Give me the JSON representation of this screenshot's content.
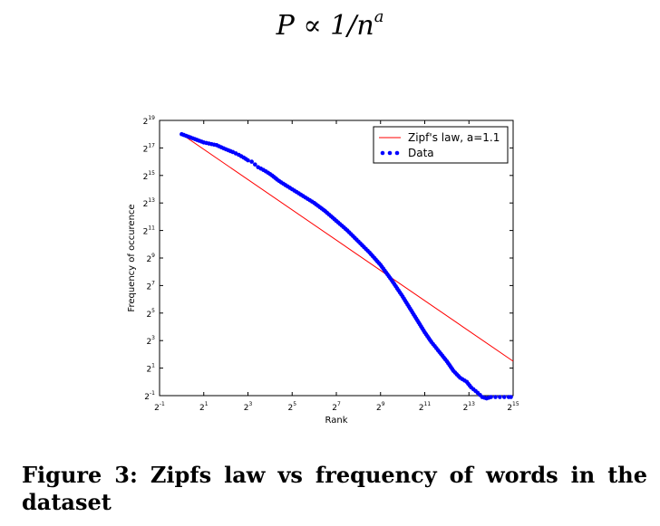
{
  "formula": {
    "lhs": "P",
    "op": "∝",
    "rhs": "1/n",
    "exponent": "a"
  },
  "caption": "Figure 3:  Zipfs law vs frequency of words in the dataset",
  "chart_data": {
    "type": "scatter",
    "xlabel": "Rank",
    "ylabel": "Frequency of occurence",
    "x_scale": "log2",
    "y_scale": "log2",
    "xlim_log2": [
      -1,
      15
    ],
    "ylim_log2": [
      -1,
      19
    ],
    "x_ticks": [
      {
        "base": "2",
        "exp": "-1",
        "value_log2": -1
      },
      {
        "base": "2",
        "exp": "1",
        "value_log2": 1
      },
      {
        "base": "2",
        "exp": "3",
        "value_log2": 3
      },
      {
        "base": "2",
        "exp": "5",
        "value_log2": 5
      },
      {
        "base": "2",
        "exp": "7",
        "value_log2": 7
      },
      {
        "base": "2",
        "exp": "9",
        "value_log2": 9
      },
      {
        "base": "2",
        "exp": "11",
        "value_log2": 11
      },
      {
        "base": "2",
        "exp": "13",
        "value_log2": 13
      },
      {
        "base": "2",
        "exp": "15",
        "value_log2": 15
      }
    ],
    "y_ticks": [
      {
        "base": "2",
        "exp": "-1",
        "value_log2": -1
      },
      {
        "base": "2",
        "exp": "1",
        "value_log2": 1
      },
      {
        "base": "2",
        "exp": "3",
        "value_log2": 3
      },
      {
        "base": "2",
        "exp": "5",
        "value_log2": 5
      },
      {
        "base": "2",
        "exp": "7",
        "value_log2": 7
      },
      {
        "base": "2",
        "exp": "9",
        "value_log2": 9
      },
      {
        "base": "2",
        "exp": "11",
        "value_log2": 11
      },
      {
        "base": "2",
        "exp": "13",
        "value_log2": 13
      },
      {
        "base": "2",
        "exp": "15",
        "value_log2": 15
      },
      {
        "base": "2",
        "exp": "17",
        "value_log2": 17
      },
      {
        "base": "2",
        "exp": "19",
        "value_log2": 19
      }
    ],
    "legend_position": "top-right",
    "series": [
      {
        "name": "Zipf's law, a=1.1",
        "kind": "line",
        "color": "#ff0000",
        "x_log2": [
          0,
          15
        ],
        "y_log2": [
          18,
          1.5
        ]
      },
      {
        "name": "Data",
        "kind": "scatter",
        "color": "#0000ff",
        "x_log2": [
          0,
          1,
          1.585,
          2,
          2.32,
          2.585,
          2.807,
          3,
          3.17,
          3.32,
          3.46,
          3.585,
          3.7,
          3.807,
          3.907,
          4,
          4.09,
          4.17,
          4.25,
          4.32,
          4.5,
          4.7,
          5,
          5.2,
          5.4,
          5.6,
          6,
          6.5,
          7,
          7.5,
          8,
          8.5,
          9,
          9.5,
          10,
          10.5,
          11,
          11.3,
          11.6,
          12,
          12.3,
          12.6,
          12.9,
          13.1,
          13.4,
          13.6,
          13.8,
          14,
          14.2,
          14.4,
          14.6,
          14.8,
          14.9
        ],
        "y_log2": [
          18.0,
          17.4,
          17.2,
          16.9,
          16.7,
          16.5,
          16.3,
          16.1,
          16.0,
          15.8,
          15.6,
          15.5,
          15.4,
          15.3,
          15.2,
          15.1,
          15.0,
          14.9,
          14.8,
          14.7,
          14.5,
          14.3,
          14.0,
          13.8,
          13.6,
          13.4,
          13.0,
          12.4,
          11.7,
          11.0,
          10.2,
          9.4,
          8.5,
          7.4,
          6.2,
          4.9,
          3.6,
          2.9,
          2.3,
          1.5,
          0.8,
          0.3,
          0.0,
          -0.4,
          -0.8,
          -1.1,
          -1.2,
          -1.1,
          -1.1,
          -1.1,
          -1.1,
          -1.1,
          -1.1
        ]
      }
    ]
  }
}
